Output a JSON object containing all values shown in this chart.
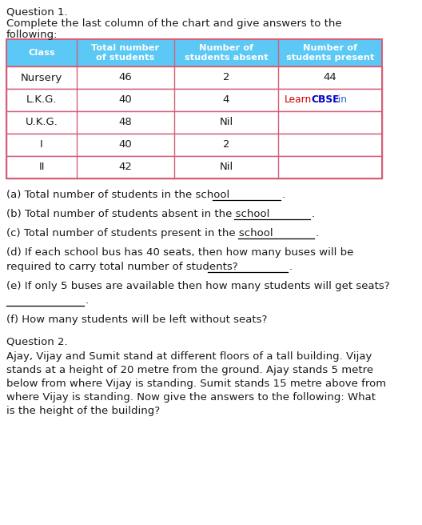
{
  "title1": "Question 1.",
  "subtitle1a": "Complete the last column of the chart and give answers to the",
  "subtitle1b": "following:",
  "table_headers": [
    "Class",
    "Total number\nof students",
    "Number of\nstudents absent",
    "Number of\nstudents present"
  ],
  "table_rows": [
    [
      "Nursery",
      "46",
      "2",
      "44"
    ],
    [
      "L.K.G.",
      "40",
      "4",
      "LearnCBSE.in"
    ],
    [
      "U.K.G.",
      "48",
      "Nil",
      ""
    ],
    [
      "I",
      "40",
      "2",
      ""
    ],
    [
      "II",
      "42",
      "Nil",
      ""
    ]
  ],
  "header_bg": "#5bc8f5",
  "header_text_color": "#ffffff",
  "row_border_color": "#d4607a",
  "learn_red": "#cc0000",
  "learn_blue": "#0000cc",
  "bg_color": "#ffffff",
  "text_color": "#1a1a1a",
  "q1_lines": [
    "(a) Total number of students in the school",
    "(b) Total number of students absent in the school",
    "(c) Total number of students present in the school",
    "(d) If each school bus has 40 seats, then how many buses will be",
    "required to carry total number of students?",
    "(e) If only 5 buses are available then how many students will get seats?",
    "(f) How many students will be left without seats?"
  ],
  "title2": "Question 2.",
  "para2_lines": [
    "Ajay, Vijay and Sumit stand at different floors of a tall building. Vijay",
    "stands at a height of 20 metre from the ground. Ajay stands 5 metre",
    "below from where Vijay is standing. Sumit stands 15 metre above from",
    "where Vijay is standing. Now give the answers to the following: What",
    "is the height of the building?"
  ]
}
